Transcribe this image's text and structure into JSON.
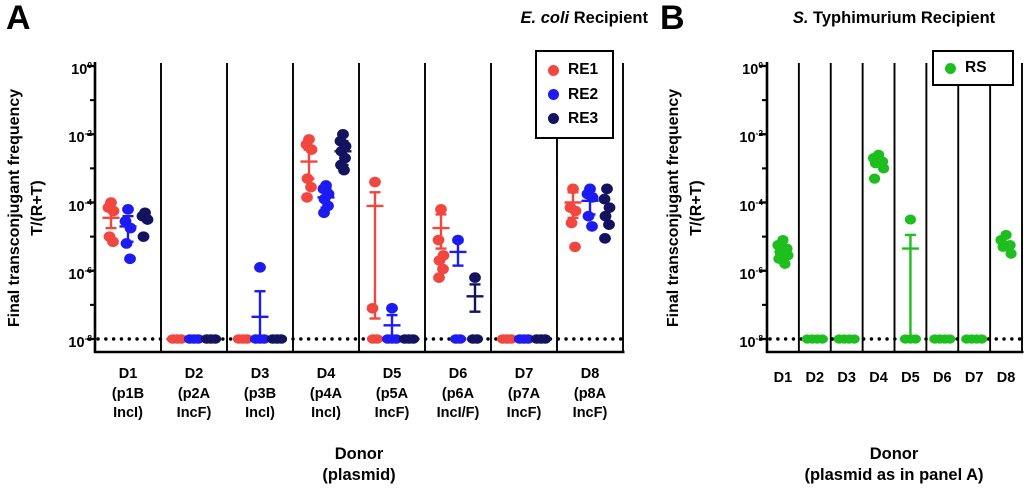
{
  "figure": {
    "panel_a_letter": "A",
    "panel_b_letter": "B"
  },
  "chart_data": [
    {
      "id": "panel-A",
      "type": "scatter",
      "y_value_type": "log10_exponent_of_frequency",
      "title_italic": "E. coli",
      "title_rest": " Recipient",
      "ylabel_line1": "Final transconjugant frequency",
      "ylabel_line2": "T/(R+T)",
      "xlabel_line1": "Donor",
      "xlabel_line2": "(plasmid)",
      "ylim_exponents": [
        0,
        -8
      ],
      "y_ticks_exponents": [
        0,
        -2,
        -4,
        -6,
        -8
      ],
      "y_minor_ticks_exponents": [
        -1,
        -3,
        -5,
        -7
      ],
      "baseline_exponent": -8,
      "grid_dividers": true,
      "legend_position": "top-right-inside",
      "categories": [
        "D1",
        "D2",
        "D3",
        "D4",
        "D5",
        "D6",
        "D7",
        "D8"
      ],
      "category_sublabels": [
        [
          "(p1B",
          "IncI)"
        ],
        [
          "(p2A",
          "IncF)"
        ],
        [
          "(p3B",
          "IncI)"
        ],
        [
          "(p4A",
          "IncI)"
        ],
        [
          "(p5A",
          "IncF)"
        ],
        [
          "(p6A",
          "IncI/F)"
        ],
        [
          "(p7A",
          "IncF)"
        ],
        [
          "(p8A",
          "IncF)"
        ]
      ],
      "series": [
        {
          "name": "RE1",
          "color": "#F2473F",
          "groups": [
            {
              "points": [
                -4.0,
                -4.15,
                -4.25,
                -5.0,
                -5.15
              ],
              "bar": {
                "mid": -4.45,
                "lo": -4.75,
                "hi": -4.15
              }
            },
            {
              "points": [
                -8,
                -8,
                -8
              ]
            },
            {
              "points": [
                -8,
                -8,
                -8
              ]
            },
            {
              "points": [
                -2.15,
                -2.3,
                -2.45,
                -3.3,
                -3.55,
                -3.85
              ],
              "bar": {
                "mid": -2.8,
                "lo": -3.3,
                "hi": -2.45
              }
            },
            {
              "points": [
                -3.4,
                -7.1,
                -8,
                -8
              ],
              "bar": {
                "mid": -4.1,
                "lo": -7.4,
                "hi": -3.7
              }
            },
            {
              "points": [
                -4.2,
                -5.1,
                -5.55,
                -5.7,
                -5.95,
                -6.2
              ],
              "bar": {
                "mid": -4.75,
                "lo": -5.35,
                "hi": -4.35
              }
            },
            {
              "points": [
                -8,
                -8,
                -8
              ]
            },
            {
              "points": [
                -3.6,
                -4.15,
                -4.25,
                -4.6,
                -5.3
              ],
              "bar": {
                "mid": -4.0,
                "lo": -4.45,
                "hi": -3.7
              }
            }
          ]
        },
        {
          "name": "RE2",
          "color": "#1B1BF2",
          "groups": [
            {
              "points": [
                -4.2,
                -4.55,
                -4.75,
                -5.2,
                -5.65
              ],
              "bar": {
                "mid": -4.7,
                "lo": -5.15,
                "hi": -4.4
              }
            },
            {
              "points": [
                -8,
                -8,
                -8
              ]
            },
            {
              "points": [
                -5.9,
                -8,
                -8,
                -8
              ],
              "bar": {
                "mid": -7.35,
                "lo": -8,
                "hi": -6.6
              }
            },
            {
              "points": [
                -3.5,
                -3.6,
                -3.75,
                -3.9,
                -4.1,
                -4.3
              ],
              "bar": {
                "mid": -3.85,
                "lo": -4.15,
                "hi": -3.6
              }
            },
            {
              "points": [
                -7.1,
                -8,
                -8,
                -8
              ],
              "bar": {
                "mid": -7.6,
                "lo": -8,
                "hi": -7.3
              }
            },
            {
              "points": [
                -5.1,
                -8,
                -8
              ],
              "bar": {
                "mid": -5.45,
                "lo": -5.85,
                "hi": -5.15
              }
            },
            {
              "points": [
                -8,
                -8,
                -8
              ]
            },
            {
              "points": [
                -3.6,
                -3.75,
                -3.85,
                -4.4,
                -4.7
              ],
              "bar": {
                "mid": -3.95,
                "lo": -4.35,
                "hi": -3.65
              }
            }
          ]
        },
        {
          "name": "RE3",
          "color": "#131360",
          "groups": [
            {
              "points": [
                -4.3,
                -4.4,
                -4.5,
                -5.0
              ]
            },
            {
              "points": [
                -8,
                -8,
                -8
              ]
            },
            {
              "points": [
                -8,
                -8,
                -8
              ]
            },
            {
              "points": [
                -2.0,
                -2.2,
                -2.35,
                -2.5,
                -2.7,
                -2.9,
                -3.05
              ],
              "bar": {
                "mid": -2.5,
                "lo": -2.9,
                "hi": -2.2
              }
            },
            {
              "points": [
                -8,
                -8,
                -8
              ]
            },
            {
              "points": [
                -6.2,
                -8,
                -8
              ],
              "bar": {
                "mid": -6.75,
                "lo": -7.2,
                "hi": -6.4
              }
            },
            {
              "points": [
                -8,
                -8,
                -8
              ]
            },
            {
              "points": [
                -3.6,
                -3.9,
                -4.15,
                -4.4,
                -4.65,
                -5.05
              ]
            }
          ]
        }
      ]
    },
    {
      "id": "panel-B",
      "type": "scatter",
      "y_value_type": "log10_exponent_of_frequency",
      "title_italic": "S.",
      "title_rest": " Typhimurium Recipient",
      "ylabel_line1": "Final transconjugant frequency",
      "ylabel_line2": "T/(R+T)",
      "xlabel_line1": "Donor",
      "xlabel_line2": "(plasmid as in panel A)",
      "ylim_exponents": [
        0,
        -8
      ],
      "y_ticks_exponents": [
        0,
        -2,
        -4,
        -6,
        -8
      ],
      "y_minor_ticks_exponents": [
        -1,
        -3,
        -5,
        -7
      ],
      "baseline_exponent": -8,
      "grid_dividers": true,
      "legend_position": "top-right-inside",
      "categories": [
        "D1",
        "D2",
        "D3",
        "D4",
        "D5",
        "D6",
        "D7",
        "D8"
      ],
      "category_sublabels": [],
      "series": [
        {
          "name": "RS",
          "color": "#1FBE1F",
          "groups": [
            {
              "points": [
                -5.1,
                -5.25,
                -5.35,
                -5.45,
                -5.55,
                -5.65,
                -5.8
              ]
            },
            {
              "points": [
                -8,
                -8,
                -8,
                -8
              ]
            },
            {
              "points": [
                -8,
                -8,
                -8,
                -8
              ]
            },
            {
              "points": [
                -2.6,
                -2.7,
                -2.8,
                -2.85,
                -3.0,
                -3.3
              ]
            },
            {
              "points": [
                -4.5,
                -8,
                -8,
                -8
              ],
              "bar": {
                "mid": -5.35,
                "lo": -8,
                "hi": -4.95
              }
            },
            {
              "points": [
                -8,
                -8,
                -8,
                -8
              ]
            },
            {
              "points": [
                -8,
                -8,
                -8,
                -8
              ]
            },
            {
              "points": [
                -4.95,
                -5.1,
                -5.25,
                -5.3,
                -5.5
              ]
            }
          ]
        }
      ]
    }
  ]
}
